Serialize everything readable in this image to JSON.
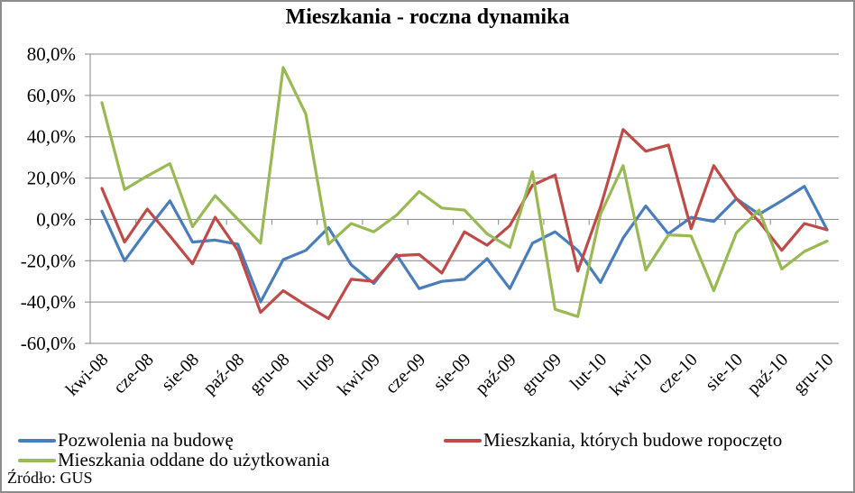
{
  "chart_data": {
    "type": "line",
    "title": "Mieszkania - roczna dynamika",
    "xlabel": "",
    "ylabel": "",
    "ylim": [
      -60,
      80
    ],
    "yticks": [
      80,
      60,
      40,
      20,
      0,
      -20,
      -40,
      -60
    ],
    "ytick_labels": [
      "80,0%",
      "60,0%",
      "40,0%",
      "20,0%",
      "0,0%",
      "-20,0%",
      "-40,0%",
      "-60,0%"
    ],
    "grid": true,
    "legend_position": "bottom",
    "categories": [
      "kwi-08",
      "maj-08",
      "cze-08",
      "lip-08",
      "sie-08",
      "wrz-08",
      "paź-08",
      "lis-08",
      "gru-08",
      "sty-09",
      "lut-09",
      "mar-09",
      "kwi-09",
      "maj-09",
      "cze-09",
      "lip-09",
      "sie-09",
      "wrz-09",
      "paź-09",
      "lis-09",
      "gru-09",
      "sty-10",
      "lut-10",
      "mar-10",
      "kwi-10",
      "maj-10",
      "cze-10",
      "lip-10",
      "sie-10",
      "wrz-10",
      "paź-10",
      "lis-10",
      "gru-10"
    ],
    "visible_xtick_labels": [
      "kwi-08",
      "cze-08",
      "sie-08",
      "paź-08",
      "gru-08",
      "lut-09",
      "kwi-09",
      "cze-09",
      "sie-09",
      "paź-09",
      "gru-09",
      "lut-10",
      "kwi-10",
      "cze-10",
      "sie-10",
      "paź-10",
      "gru-10"
    ],
    "series": [
      {
        "name": "Pozwolenia na budowę",
        "color": "#4a7ebb",
        "values": [
          4,
          -20,
          -5,
          9,
          -11,
          -10,
          -12,
          -40,
          -19.5,
          -15,
          -4,
          -22,
          -31,
          -17,
          -33.5,
          -30,
          -29,
          -19,
          -33.5,
          -11.5,
          -6,
          -15,
          -30.5,
          -9,
          6.5,
          -7,
          1,
          -1,
          10,
          2.5,
          9,
          16,
          -5
        ]
      },
      {
        "name": "Mieszkania, których budowe ropoczęto",
        "color": "#be4b48",
        "values": [
          15,
          -11,
          5,
          -8,
          -21.5,
          1,
          -15,
          -45,
          -34.5,
          -41.5,
          -48,
          -29,
          -30,
          -17.5,
          -17,
          -26,
          -6,
          -12.5,
          -3,
          16.5,
          21.5,
          -25,
          6,
          43.5,
          33,
          36,
          -4.5,
          26,
          10,
          -1,
          -15,
          -2,
          -5
        ]
      },
      {
        "name": "Mieszkania oddane do użytkowania",
        "color": "#98b954",
        "values": [
          56.5,
          14.5,
          21,
          27,
          -3.5,
          11.5,
          0,
          -11.5,
          73.5,
          51,
          -12,
          -2,
          -6,
          2,
          13.5,
          5.5,
          4.5,
          -7,
          -13.5,
          23,
          -43.5,
          -47,
          2.5,
          26,
          -24.5,
          -7.5,
          -8,
          -34.5,
          -6.5,
          4.5,
          -24,
          -15.5,
          -10.5
        ]
      }
    ],
    "source": "Źródło: GUS"
  },
  "title": "Mieszkania - roczna dynamika",
  "legend": {
    "items": [
      {
        "label": "Pozwolenia na budowę",
        "color": "#4a7ebb"
      },
      {
        "label": "Mieszkania, których budowe ropoczęto",
        "color": "#be4b48"
      },
      {
        "label": "Mieszkania oddane do użytkowania",
        "color": "#98b954"
      }
    ]
  },
  "source": "Źródło: GUS"
}
